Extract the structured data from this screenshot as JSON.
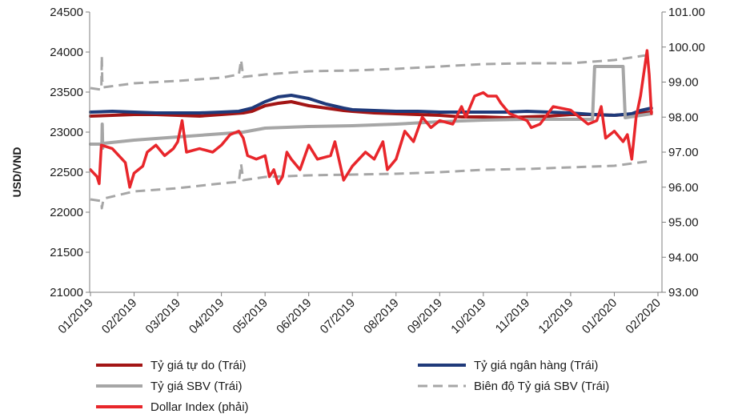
{
  "chart_data": {
    "type": "line",
    "ylabel": "USD/VND",
    "left_axis": {
      "min": 21000,
      "max": 24500,
      "ticks": [
        "21000",
        "21500",
        "22000",
        "22500",
        "23000",
        "23500",
        "24000",
        "24500"
      ]
    },
    "right_axis": {
      "min": 93.0,
      "max": 101.0,
      "ticks": [
        "93.00",
        "94.00",
        "95.00",
        "96.00",
        "97.00",
        "98.00",
        "99.00",
        "100.00",
        "101.00"
      ]
    },
    "x_ticks": [
      "01/2019",
      "02/2019",
      "03/2019",
      "04/2019",
      "05/2019",
      "06/2019",
      "07/2019",
      "08/2019",
      "09/2019",
      "10/2019",
      "11/2019",
      "12/2019",
      "01/2020",
      "02/2020"
    ],
    "grid": false,
    "legend_position": "bottom",
    "series": [
      {
        "name": "Tỷ giá tự do (Trái)",
        "axis": "left",
        "color": "#a31515",
        "style": "solid",
        "points": [
          [
            0,
            23200
          ],
          [
            0.5,
            23210
          ],
          [
            1,
            23220
          ],
          [
            1.5,
            23220
          ],
          [
            2,
            23210
          ],
          [
            2.5,
            23200
          ],
          [
            3,
            23220
          ],
          [
            3.5,
            23240
          ],
          [
            3.7,
            23260
          ],
          [
            4,
            23330
          ],
          [
            4.3,
            23360
          ],
          [
            4.6,
            23380
          ],
          [
            5,
            23330
          ],
          [
            5.4,
            23300
          ],
          [
            5.8,
            23270
          ],
          [
            6,
            23260
          ],
          [
            6.5,
            23240
          ],
          [
            7,
            23230
          ],
          [
            7.5,
            23220
          ],
          [
            8,
            23210
          ],
          [
            8.5,
            23190
          ],
          [
            9,
            23190
          ],
          [
            9.5,
            23180
          ],
          [
            10,
            23190
          ],
          [
            10.5,
            23200
          ],
          [
            11,
            23220
          ],
          [
            11.5,
            23220
          ],
          [
            12,
            23210
          ],
          [
            12.5,
            23230
          ],
          [
            12.85,
            23250
          ]
        ]
      },
      {
        "name": "Tỷ giá ngân hàng (Trái)",
        "axis": "left",
        "color": "#1f3a7a",
        "style": "solid",
        "points": [
          [
            0,
            23250
          ],
          [
            0.5,
            23260
          ],
          [
            1,
            23250
          ],
          [
            1.5,
            23240
          ],
          [
            2,
            23240
          ],
          [
            2.5,
            23240
          ],
          [
            3,
            23250
          ],
          [
            3.4,
            23260
          ],
          [
            3.7,
            23300
          ],
          [
            4,
            23380
          ],
          [
            4.3,
            23440
          ],
          [
            4.6,
            23460
          ],
          [
            5,
            23420
          ],
          [
            5.4,
            23350
          ],
          [
            5.8,
            23300
          ],
          [
            6,
            23280
          ],
          [
            6.5,
            23270
          ],
          [
            7,
            23260
          ],
          [
            7.5,
            23260
          ],
          [
            8,
            23250
          ],
          [
            8.5,
            23250
          ],
          [
            9,
            23250
          ],
          [
            9.5,
            23250
          ],
          [
            10,
            23260
          ],
          [
            10.5,
            23250
          ],
          [
            11,
            23240
          ],
          [
            11.5,
            23220
          ],
          [
            12,
            23210
          ],
          [
            12.4,
            23230
          ],
          [
            12.6,
            23270
          ],
          [
            12.85,
            23300
          ]
        ]
      },
      {
        "name": "Tỷ giá SBV (Trái)",
        "axis": "left",
        "color": "#a6a6a6",
        "style": "solid",
        "points": [
          [
            0,
            22850
          ],
          [
            0.25,
            22850
          ],
          [
            0.26,
            22800
          ],
          [
            0.27,
            23100
          ],
          [
            0.28,
            22800
          ],
          [
            0.3,
            22860
          ],
          [
            1,
            22900
          ],
          [
            2,
            22940
          ],
          [
            3,
            22980
          ],
          [
            3.5,
            23000
          ],
          [
            4,
            23050
          ],
          [
            5,
            23070
          ],
          [
            6,
            23080
          ],
          [
            7,
            23100
          ],
          [
            8,
            23130
          ],
          [
            9,
            23150
          ],
          [
            10,
            23160
          ],
          [
            11,
            23160
          ],
          [
            11.5,
            23160
          ],
          [
            11.55,
            23820
          ],
          [
            12.2,
            23820
          ],
          [
            12.25,
            23180
          ],
          [
            12.85,
            23230
          ]
        ]
      },
      {
        "name": "Biên độ Tỷ giá SBV (Trái)",
        "axis": "left",
        "color": "#a6a6a6",
        "style": "dashed",
        "points": [
          [
            0,
            23550
          ],
          [
            0.25,
            23530
          ],
          [
            0.26,
            23950
          ],
          [
            0.27,
            23650
          ],
          [
            0.3,
            23560
          ],
          [
            1,
            23610
          ],
          [
            2,
            23640
          ],
          [
            3,
            23680
          ],
          [
            3.4,
            23720
          ],
          [
            3.45,
            23900
          ],
          [
            3.5,
            23690
          ],
          [
            4,
            23720
          ],
          [
            5,
            23760
          ],
          [
            6,
            23770
          ],
          [
            7,
            23790
          ],
          [
            8,
            23820
          ],
          [
            9,
            23850
          ],
          [
            10,
            23860
          ],
          [
            11,
            23860
          ],
          [
            12,
            23900
          ],
          [
            12.85,
            23970
          ]
        ]
      },
      {
        "name": "Biên độ Tỷ giá SBV (Trái)",
        "axis": "left",
        "color": "#a6a6a6",
        "style": "dashed",
        "points": [
          [
            0,
            22160
          ],
          [
            0.25,
            22140
          ],
          [
            0.26,
            22050
          ],
          [
            0.3,
            22170
          ],
          [
            1,
            22260
          ],
          [
            2,
            22300
          ],
          [
            3,
            22360
          ],
          [
            3.4,
            22380
          ],
          [
            3.45,
            22600
          ],
          [
            3.5,
            22400
          ],
          [
            4,
            22440
          ],
          [
            5,
            22460
          ],
          [
            6,
            22470
          ],
          [
            7,
            22480
          ],
          [
            8,
            22500
          ],
          [
            9,
            22530
          ],
          [
            10,
            22540
          ],
          [
            11,
            22560
          ],
          [
            12,
            22580
          ],
          [
            12.85,
            22640
          ]
        ]
      },
      {
        "name": "Dollar Index (phải)",
        "axis": "right",
        "color": "#e8262b",
        "style": "solid",
        "points": [
          [
            0,
            96.5
          ],
          [
            0.15,
            96.3
          ],
          [
            0.2,
            96.1
          ],
          [
            0.25,
            97.2
          ],
          [
            0.5,
            97.1
          ],
          [
            0.8,
            96.7
          ],
          [
            0.9,
            96.0
          ],
          [
            1,
            96.4
          ],
          [
            1.2,
            96.6
          ],
          [
            1.3,
            97.0
          ],
          [
            1.5,
            97.2
          ],
          [
            1.7,
            96.9
          ],
          [
            1.9,
            97.1
          ],
          [
            2,
            97.3
          ],
          [
            2.1,
            97.9
          ],
          [
            2.2,
            97.0
          ],
          [
            2.5,
            97.1
          ],
          [
            2.8,
            97.0
          ],
          [
            3,
            97.2
          ],
          [
            3.2,
            97.5
          ],
          [
            3.4,
            97.6
          ],
          [
            3.5,
            97.4
          ],
          [
            3.6,
            96.9
          ],
          [
            3.8,
            96.8
          ],
          [
            4,
            96.9
          ],
          [
            4.1,
            96.3
          ],
          [
            4.2,
            96.5
          ],
          [
            4.3,
            96.1
          ],
          [
            4.4,
            96.3
          ],
          [
            4.5,
            97.0
          ],
          [
            4.6,
            96.8
          ],
          [
            4.8,
            96.5
          ],
          [
            5,
            97.2
          ],
          [
            5.2,
            96.8
          ],
          [
            5.5,
            96.9
          ],
          [
            5.6,
            97.3
          ],
          [
            5.8,
            96.2
          ],
          [
            6,
            96.6
          ],
          [
            6.3,
            97.0
          ],
          [
            6.5,
            96.8
          ],
          [
            6.7,
            97.3
          ],
          [
            6.8,
            96.5
          ],
          [
            7,
            96.8
          ],
          [
            7.2,
            97.6
          ],
          [
            7.4,
            97.3
          ],
          [
            7.6,
            98.0
          ],
          [
            7.8,
            97.7
          ],
          [
            8,
            97.9
          ],
          [
            8.3,
            97.8
          ],
          [
            8.5,
            98.3
          ],
          [
            8.6,
            98.0
          ],
          [
            8.8,
            98.6
          ],
          [
            9,
            98.7
          ],
          [
            9.1,
            98.6
          ],
          [
            9.3,
            98.6
          ],
          [
            9.4,
            98.4
          ],
          [
            9.6,
            98.1
          ],
          [
            9.8,
            98.0
          ],
          [
            10,
            97.9
          ],
          [
            10.1,
            97.7
          ],
          [
            10.3,
            97.8
          ],
          [
            10.6,
            98.3
          ],
          [
            11,
            98.2
          ],
          [
            11.2,
            98.0
          ],
          [
            11.4,
            97.8
          ],
          [
            11.6,
            97.9
          ],
          [
            11.7,
            98.3
          ],
          [
            11.8,
            97.4
          ],
          [
            12,
            97.6
          ],
          [
            12.2,
            97.3
          ],
          [
            12.3,
            97.5
          ],
          [
            12.4,
            96.8
          ],
          [
            12.5,
            98.0
          ],
          [
            12.6,
            98.6
          ],
          [
            12.75,
            99.9
          ],
          [
            12.8,
            99.2
          ],
          [
            12.85,
            98.1
          ]
        ]
      }
    ]
  },
  "legend": {
    "item_1": "Tỷ giá tự do (Trái)",
    "item_2": "Tỷ giá ngân hàng (Trái)",
    "item_3": "Tỷ giá SBV (Trái)",
    "item_4": "Biên độ Tỷ giá SBV (Trái)",
    "item_5": "Dollar Index (phải)"
  }
}
